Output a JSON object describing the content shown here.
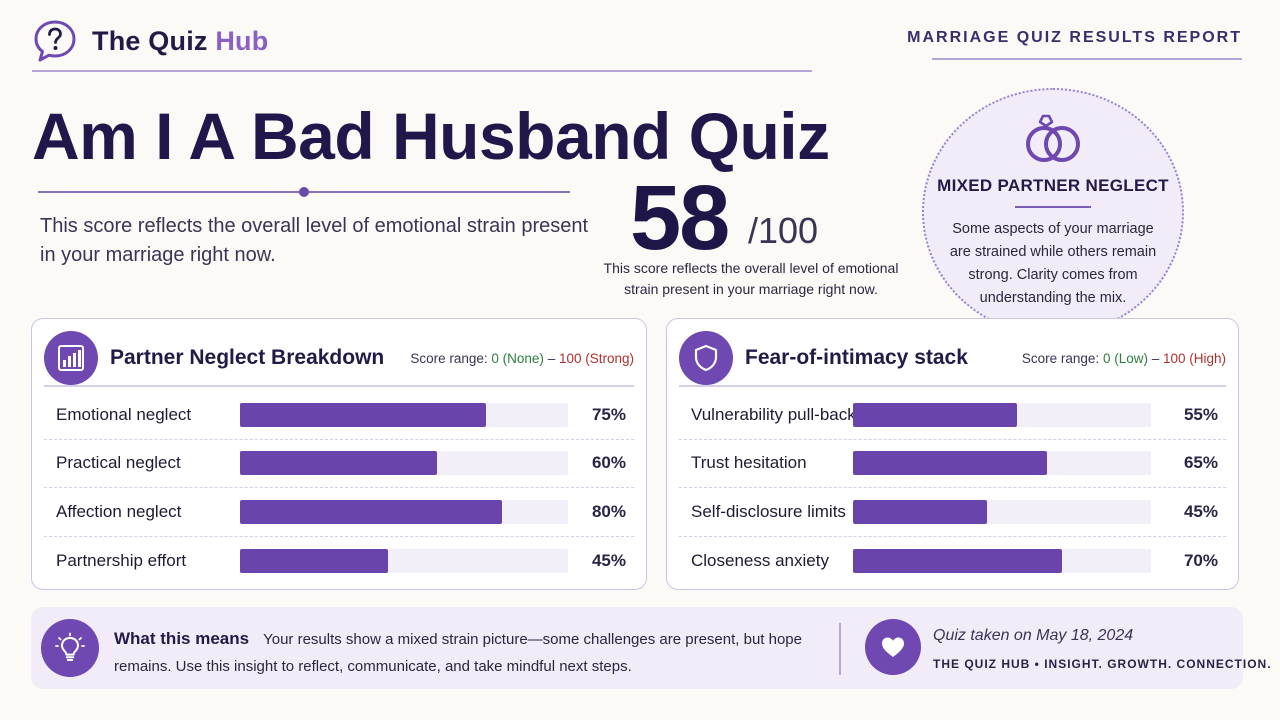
{
  "header": {
    "brand_main": "The Quiz",
    "brand_accent": "Hub",
    "report_label": "MARRIAGE QUIZ RESULTS REPORT"
  },
  "title": "Am I A Bad Husband Quiz",
  "intro": "This score reflects the overall level of emotional strain present in your marriage right now.",
  "score": {
    "value": "58",
    "max": "/100",
    "caption": "This score reflects the overall level of emotional strain present in your marriage right now."
  },
  "result_card": {
    "title": "MIXED PARTNER NEGLECT",
    "text": "Some aspects of your marriage are strained while others remain strong. Clarity comes from understanding the mix."
  },
  "neglect_panel": {
    "title": "Partner Neglect Breakdown",
    "range_prefix": "Score range: ",
    "range_low": "0 (None)",
    "range_sep": " – ",
    "range_high": "100 (Strong)",
    "rows": [
      {
        "label": "Emotional neglect",
        "value": 75,
        "pct": "75%"
      },
      {
        "label": "Practical neglect",
        "value": 60,
        "pct": "60%"
      },
      {
        "label": "Affection neglect",
        "value": 80,
        "pct": "80%"
      },
      {
        "label": "Partnership effort",
        "value": 45,
        "pct": "45%"
      }
    ]
  },
  "intimacy_panel": {
    "title": "Fear-of-intimacy stack",
    "range_prefix": "Score range: ",
    "range_low": "0 (Low)",
    "range_sep": " – ",
    "range_high": "100 (High)",
    "rows": [
      {
        "label": "Vulnerability pull-back",
        "value": 55,
        "pct": "55%"
      },
      {
        "label": "Trust hesitation",
        "value": 65,
        "pct": "65%"
      },
      {
        "label": "Self-disclosure limits",
        "value": 45,
        "pct": "45%"
      },
      {
        "label": "Closeness anxiety",
        "value": 70,
        "pct": "70%"
      }
    ]
  },
  "meaning": {
    "title": "What this means",
    "text": "Your results show a mixed strain picture—some challenges are present, but hope remains. Use this insight to reflect, communicate, and take mindful next steps."
  },
  "footer": {
    "taken": "Quiz taken on May 18, 2024",
    "tagline": "THE QUIZ HUB • INSIGHT. GROWTH. CONNECTION."
  },
  "icons": {
    "logo": "speech-bubble-question-icon",
    "result": "wedding-rings-icon",
    "neglect": "bar-chart-icon",
    "intimacy": "shield-icon",
    "meaning": "lightbulb-icon",
    "footer": "heart-icon"
  },
  "colors": {
    "accent": "#6f48b2",
    "bar": "#6a44ad",
    "brand_accent": "#8a5fc8",
    "low": "#2e7d3e",
    "high": "#b0302e"
  }
}
